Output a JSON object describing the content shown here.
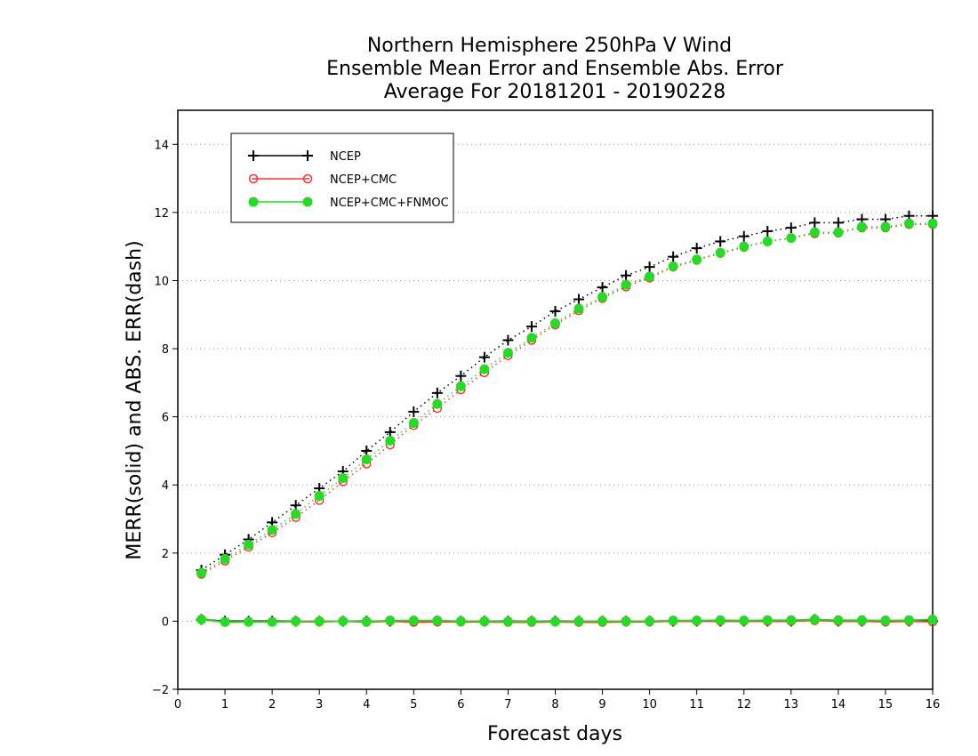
{
  "chart_data": {
    "type": "line",
    "title_lines": [
      "Northern Hemisphere 250hPa V Wind",
      "Ensemble Mean Error and Ensemble Abs. Error",
      "Average For 20181201 - 20190228"
    ],
    "xlabel": "Forecast days",
    "ylabel": "MERR(solid) and ABS. ERR(dash)",
    "xlim": [
      0,
      16
    ],
    "ylim": [
      -2,
      15
    ],
    "xticks": [
      0,
      1,
      2,
      3,
      4,
      5,
      6,
      7,
      8,
      9,
      10,
      11,
      12,
      13,
      14,
      15,
      16
    ],
    "yticks": [
      -2,
      0,
      2,
      4,
      6,
      8,
      10,
      12,
      14
    ],
    "grid": "horizontal dotted",
    "legend_position": "top-left",
    "x": [
      0.5,
      1,
      1.5,
      2,
      2.5,
      3,
      3.5,
      4,
      4.5,
      5,
      5.5,
      6,
      6.5,
      7,
      7.5,
      8,
      8.5,
      9,
      9.5,
      10,
      10.5,
      11,
      11.5,
      12,
      12.5,
      13,
      13.5,
      14,
      14.5,
      15,
      15.5,
      16
    ],
    "series": [
      {
        "name": "NCEP",
        "color": "#000000",
        "marker": "plus",
        "abs_err": [
          1.5,
          1.95,
          2.4,
          2.9,
          3.4,
          3.9,
          4.4,
          5.0,
          5.55,
          6.15,
          6.7,
          7.2,
          7.75,
          8.25,
          8.65,
          9.1,
          9.45,
          9.8,
          10.15,
          10.4,
          10.7,
          10.95,
          11.15,
          11.3,
          11.45,
          11.55,
          11.7,
          11.7,
          11.8,
          11.8,
          11.9,
          11.9
        ],
        "mean_err": [
          0.05,
          0.0,
          0.0,
          0.0,
          0.0,
          0.0,
          0.0,
          0.0,
          0.0,
          0.0,
          0.0,
          0.0,
          0.0,
          0.0,
          0.0,
          0.0,
          0.0,
          0.0,
          0.0,
          0.0,
          0.0,
          0.0,
          0.0,
          0.0,
          0.0,
          0.0,
          0.05,
          0.0,
          0.0,
          0.0,
          0.0,
          0.0
        ]
      },
      {
        "name": "NCEP+CMC",
        "color": "#ff3333",
        "marker": "open-circle",
        "abs_err": [
          1.38,
          1.77,
          2.18,
          2.6,
          3.05,
          3.55,
          4.1,
          4.62,
          5.18,
          5.75,
          6.25,
          6.8,
          7.3,
          7.8,
          8.25,
          8.7,
          9.12,
          9.48,
          9.82,
          10.08,
          10.4,
          10.6,
          10.8,
          10.98,
          11.15,
          11.25,
          11.38,
          11.4,
          11.55,
          11.55,
          11.65,
          11.65
        ],
        "mean_err": [
          0.05,
          -0.03,
          -0.02,
          -0.02,
          -0.01,
          -0.02,
          0.0,
          -0.03,
          0.0,
          -0.03,
          -0.02,
          -0.02,
          -0.02,
          -0.03,
          -0.03,
          -0.02,
          -0.03,
          -0.03,
          -0.02,
          -0.02,
          0.0,
          0.0,
          0.0,
          0.0,
          0.0,
          0.0,
          0.02,
          0.0,
          0.0,
          -0.02,
          0.0,
          -0.02
        ]
      },
      {
        "name": "NCEP+CMC+FNMOC",
        "color": "#22dd22",
        "marker": "filled-circle",
        "abs_err": [
          1.42,
          1.83,
          2.25,
          2.68,
          3.15,
          3.68,
          4.2,
          4.75,
          5.3,
          5.82,
          6.38,
          6.9,
          7.4,
          7.88,
          8.32,
          8.75,
          9.18,
          9.52,
          9.88,
          10.12,
          10.42,
          10.62,
          10.82,
          11.0,
          11.15,
          11.25,
          11.42,
          11.42,
          11.58,
          11.58,
          11.68,
          11.68
        ],
        "mean_err": [
          0.05,
          -0.02,
          -0.02,
          -0.02,
          0.0,
          0.0,
          0.0,
          -0.01,
          0.02,
          0.02,
          0.02,
          0.0,
          0.0,
          -0.01,
          0.0,
          -0.01,
          0.0,
          0.0,
          0.0,
          0.0,
          0.02,
          0.02,
          0.03,
          0.02,
          0.03,
          0.03,
          0.05,
          0.03,
          0.03,
          0.02,
          0.03,
          0.05
        ]
      }
    ]
  }
}
